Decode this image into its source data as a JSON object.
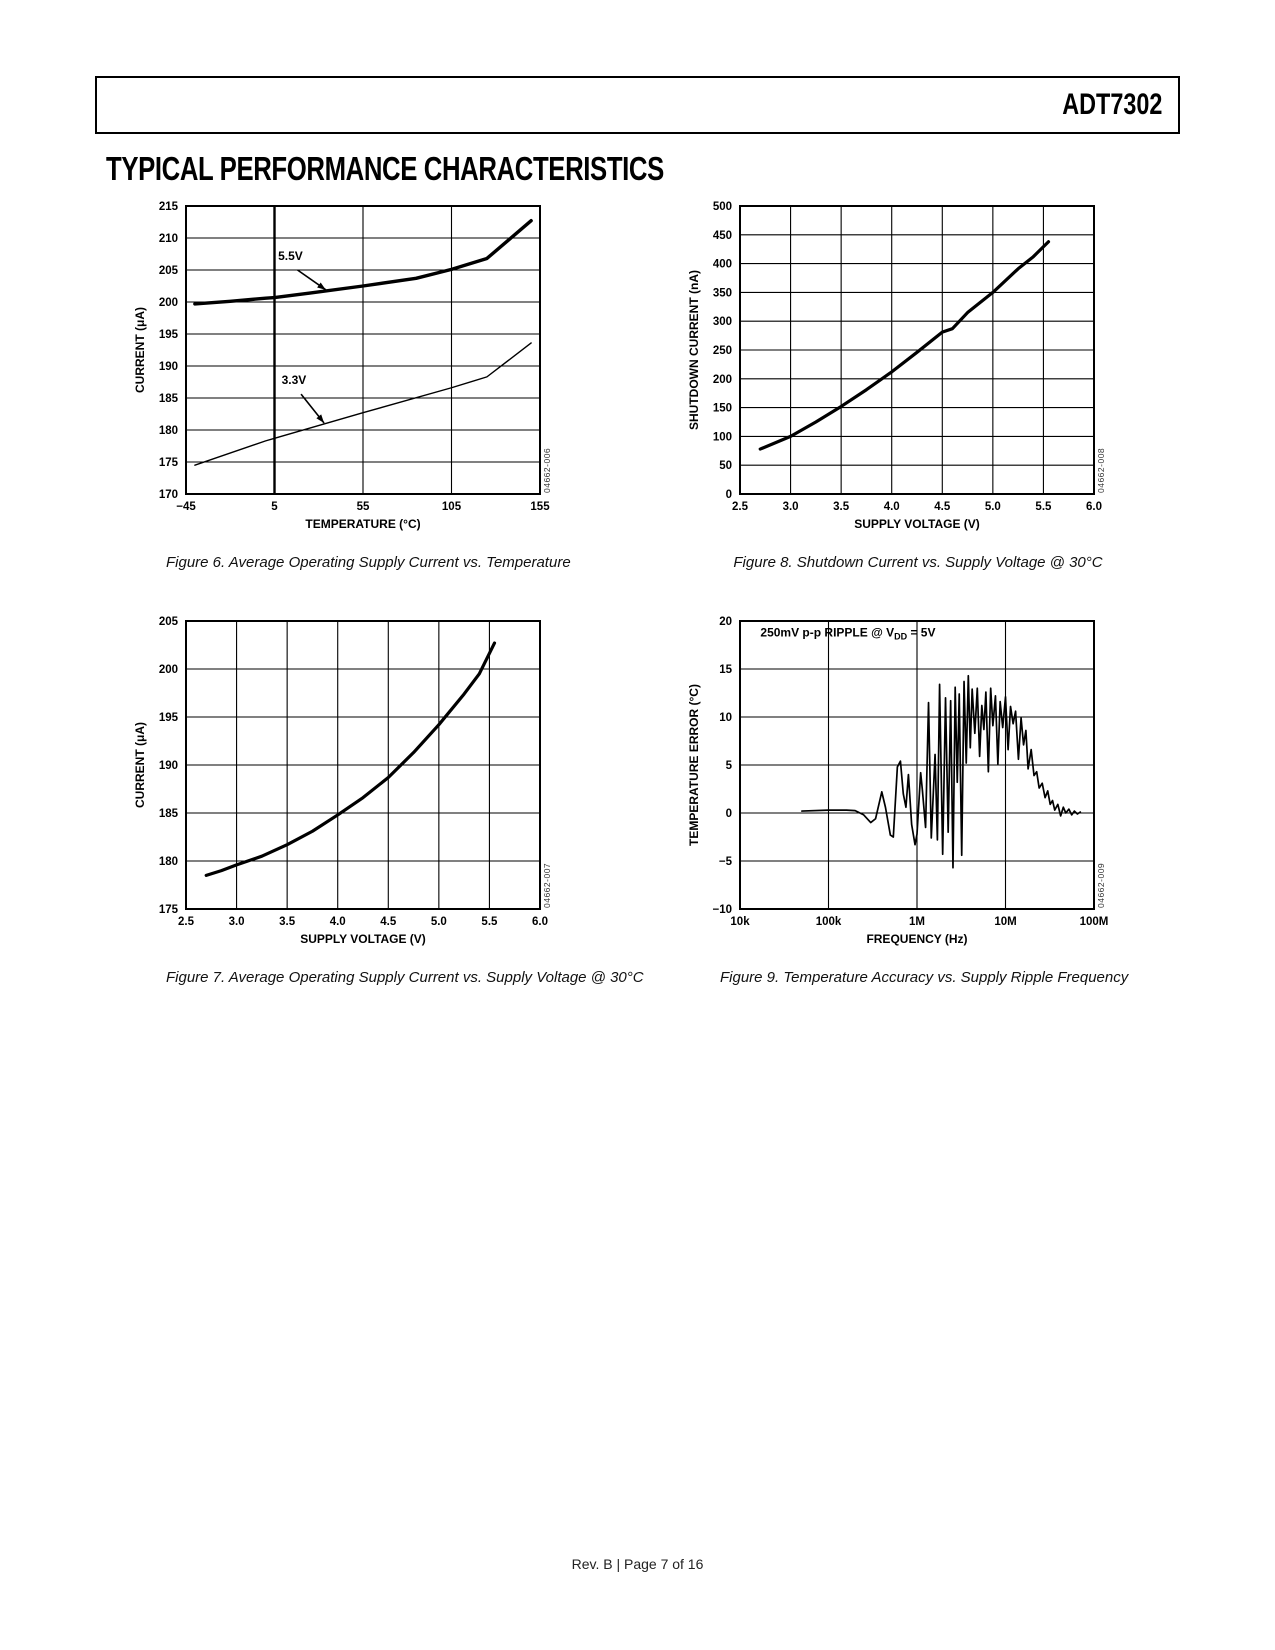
{
  "header": {
    "part_number": "ADT7302",
    "section_title": "TYPICAL PERFORMANCE CHARACTERISTICS"
  },
  "footer": {
    "text": "Rev. B | Page 7 of 16"
  },
  "colors": {
    "ink": "#000000",
    "watermark": "#333333"
  },
  "chart_data": [
    {
      "name": "fig6",
      "type": "line",
      "caption": "Figure 6. Average Operating Supply Current vs. Temperature",
      "watermark": "04662-006",
      "xlabel": "TEMPERATURE (°C)",
      "ylabel": "CURRENT (μA)",
      "xlim": [
        -45,
        155
      ],
      "ylim": [
        170,
        215
      ],
      "xticks": [
        -45,
        5,
        55,
        105,
        155
      ],
      "xtick_labels": [
        "−45",
        "5",
        "55",
        "105",
        "155"
      ],
      "xtick_emphasis": [
        5
      ],
      "yticks": [
        170,
        175,
        180,
        185,
        190,
        195,
        200,
        205,
        210,
        215
      ],
      "ytick_labels": [
        "170",
        "175",
        "180",
        "185",
        "190",
        "195",
        "200",
        "205",
        "210",
        "215"
      ],
      "grid": true,
      "series": [
        {
          "name": "5.5V",
          "width": 3.4,
          "points": [
            [
              -40,
              199.7
            ],
            [
              -20,
              200.1
            ],
            [
              0,
              200.6
            ],
            [
              5,
              200.7
            ],
            [
              25,
              201.4
            ],
            [
              55,
              202.5
            ],
            [
              85,
              203.7
            ],
            [
              105,
              205.1
            ],
            [
              125,
              206.8
            ],
            [
              150,
              212.7
            ]
          ]
        },
        {
          "name": "3.3V",
          "width": 1.4,
          "points": [
            [
              -40,
              174.5
            ],
            [
              0,
              178.3
            ],
            [
              5,
              178.7
            ],
            [
              55,
              182.7
            ],
            [
              105,
              186.6
            ],
            [
              125,
              188.3
            ],
            [
              150,
              193.6
            ]
          ]
        }
      ],
      "annotations": [
        {
          "text": "5.5V",
          "text_at": [
            14,
            206.6
          ],
          "arrow": [
            [
              18,
              205.0
            ],
            [
              34,
              201.9
            ]
          ]
        },
        {
          "text": "3.3V",
          "text_at": [
            16,
            187.2
          ],
          "arrow": [
            [
              20,
              185.6
            ],
            [
              33,
              181.1
            ]
          ]
        }
      ]
    },
    {
      "name": "fig8",
      "type": "line",
      "caption": "Figure 8. Shutdown Current vs. Supply Voltage @ 30°C",
      "watermark": "04662-008",
      "xlabel": "SUPPLY VOLTAGE (V)",
      "ylabel": "SHUTDOWN CURRENT (nA)",
      "xlim": [
        2.5,
        6.0
      ],
      "ylim": [
        0,
        500
      ],
      "xticks": [
        2.5,
        3.0,
        3.5,
        4.0,
        4.5,
        5.0,
        5.5,
        6.0
      ],
      "xtick_labels": [
        "2.5",
        "3.0",
        "3.5",
        "4.0",
        "4.5",
        "5.0",
        "5.5",
        "6.0"
      ],
      "yticks": [
        0,
        50,
        100,
        150,
        200,
        250,
        300,
        350,
        400,
        450,
        500
      ],
      "ytick_labels": [
        "0",
        "50",
        "100",
        "150",
        "200",
        "250",
        "300",
        "350",
        "400",
        "450",
        "500"
      ],
      "grid": true,
      "series": [
        {
          "name": "shutdown-current",
          "width": 3.2,
          "points": [
            [
              2.7,
              78
            ],
            [
              3.0,
              100
            ],
            [
              3.25,
              125
            ],
            [
              3.5,
              152
            ],
            [
              3.75,
              181
            ],
            [
              4.0,
              212
            ],
            [
              4.25,
              246
            ],
            [
              4.5,
              281
            ],
            [
              4.6,
              287
            ],
            [
              4.75,
              315
            ],
            [
              5.0,
              350
            ],
            [
              5.25,
              391
            ],
            [
              5.4,
              412
            ],
            [
              5.55,
              438
            ]
          ]
        }
      ],
      "annotations": []
    },
    {
      "name": "fig7",
      "type": "line",
      "caption": "Figure 7. Average Operating Supply Current vs. Supply Voltage @ 30°C",
      "watermark": "04662-007",
      "xlabel": "SUPPLY VOLTAGE (V)",
      "ylabel": "CURRENT (μA)",
      "xlim": [
        2.5,
        6.0
      ],
      "ylim": [
        175,
        205
      ],
      "xticks": [
        2.5,
        3.0,
        3.5,
        4.0,
        4.5,
        5.0,
        5.5,
        6.0
      ],
      "xtick_labels": [
        "2.5",
        "3.0",
        "3.5",
        "4.0",
        "4.5",
        "5.0",
        "5.5",
        "6.0"
      ],
      "yticks": [
        175,
        180,
        185,
        190,
        195,
        200,
        205
      ],
      "ytick_labels": [
        "175",
        "180",
        "185",
        "190",
        "195",
        "200",
        "205"
      ],
      "grid": true,
      "series": [
        {
          "name": "supply-current",
          "width": 3.2,
          "points": [
            [
              2.7,
              178.5
            ],
            [
              2.85,
              179.0
            ],
            [
              3.0,
              179.6
            ],
            [
              3.25,
              180.5
            ],
            [
              3.5,
              181.7
            ],
            [
              3.75,
              183.1
            ],
            [
              4.0,
              184.8
            ],
            [
              4.25,
              186.6
            ],
            [
              4.5,
              188.7
            ],
            [
              4.75,
              191.3
            ],
            [
              5.0,
              194.2
            ],
            [
              5.25,
              197.4
            ],
            [
              5.4,
              199.5
            ],
            [
              5.55,
              202.7
            ]
          ]
        }
      ],
      "annotations": []
    },
    {
      "name": "fig9",
      "type": "line",
      "caption": "Figure 9. Temperature Accuracy vs. Supply Ripple Frequency",
      "watermark": "04662-009",
      "xlabel": "FREQUENCY (Hz)",
      "ylabel": "TEMPERATURE ERROR (°C)",
      "xscale": "log",
      "xlim": [
        10000,
        100000000
      ],
      "ylim": [
        -10,
        20
      ],
      "xticks": [
        10000,
        100000,
        1000000,
        10000000,
        100000000
      ],
      "xtick_labels": [
        "10k",
        "100k",
        "1M",
        "10M",
        "100M"
      ],
      "yticks": [
        -10,
        -5,
        0,
        5,
        10,
        15,
        20
      ],
      "ytick_labels": [
        "−10",
        "−5",
        "0",
        "5",
        "10",
        "15",
        "20"
      ],
      "grid": true,
      "note": {
        "pre": "250mV p-p RIPPLE @ V",
        "sub": "DD",
        "post": " = 5V",
        "at": [
          17000,
          18.4
        ]
      },
      "series": [
        {
          "name": "temperature-error",
          "width": 1.7,
          "points": [
            [
              50000,
              0.2
            ],
            [
              100000,
              0.3
            ],
            [
              160000,
              0.3
            ],
            [
              200000,
              0.25
            ],
            [
              250000,
              -0.2
            ],
            [
              300000,
              -1.0
            ],
            [
              340000,
              -0.6
            ],
            [
              400000,
              2.2
            ],
            [
              440000,
              0.6
            ],
            [
              500000,
              -2.3
            ],
            [
              540000,
              -2.5
            ],
            [
              600000,
              4.8
            ],
            [
              650000,
              5.4
            ],
            [
              700000,
              2.0
            ],
            [
              750000,
              0.6
            ],
            [
              800000,
              4.0
            ],
            [
              870000,
              -1.2
            ],
            [
              950000,
              -3.3
            ],
            [
              1000000,
              -2.2
            ],
            [
              1100000,
              4.2
            ],
            [
              1150000,
              2.4
            ],
            [
              1250000,
              -1.5
            ],
            [
              1350000,
              11.5
            ],
            [
              1450000,
              -2.6
            ],
            [
              1600000,
              6.1
            ],
            [
              1700000,
              -2.8
            ],
            [
              1800000,
              13.4
            ],
            [
              1950000,
              -4.3
            ],
            [
              2100000,
              12.0
            ],
            [
              2250000,
              -2.0
            ],
            [
              2400000,
              11.7
            ],
            [
              2550000,
              -5.7
            ],
            [
              2700000,
              13.1
            ],
            [
              2850000,
              3.2
            ],
            [
              3000000,
              12.4
            ],
            [
              3200000,
              -4.4
            ],
            [
              3400000,
              13.7
            ],
            [
              3600000,
              5.2
            ],
            [
              3800000,
              14.3
            ],
            [
              4000000,
              6.8
            ],
            [
              4200000,
              12.9
            ],
            [
              4500000,
              8.3
            ],
            [
              4800000,
              13.0
            ],
            [
              5100000,
              5.9
            ],
            [
              5400000,
              11.2
            ],
            [
              5700000,
              8.7
            ],
            [
              6000000,
              12.6
            ],
            [
              6400000,
              4.3
            ],
            [
              6800000,
              13.0
            ],
            [
              7200000,
              9.1
            ],
            [
              7700000,
              12.2
            ],
            [
              8200000,
              5.1
            ],
            [
              8700000,
              11.6
            ],
            [
              9300000,
              8.9
            ],
            [
              10000000,
              12.1
            ],
            [
              10700000,
              6.6
            ],
            [
              11400000,
              11.1
            ],
            [
              12200000,
              9.3
            ],
            [
              13000000,
              10.6
            ],
            [
              14000000,
              5.6
            ],
            [
              15000000,
              9.9
            ],
            [
              16000000,
              7.1
            ],
            [
              17000000,
              8.6
            ],
            [
              18000000,
              4.6
            ],
            [
              19500000,
              6.6
            ],
            [
              21000000,
              3.9
            ],
            [
              22500000,
              4.3
            ],
            [
              24000000,
              2.6
            ],
            [
              26000000,
              3.1
            ],
            [
              28000000,
              1.6
            ],
            [
              30000000,
              2.3
            ],
            [
              32000000,
              0.9
            ],
            [
              34000000,
              1.3
            ],
            [
              36000000,
              0.3
            ],
            [
              39000000,
              0.9
            ],
            [
              42000000,
              -0.3
            ],
            [
              45000000,
              0.6
            ],
            [
              48000000,
              0.0
            ],
            [
              52000000,
              0.4
            ],
            [
              56000000,
              -0.2
            ],
            [
              60000000,
              0.2
            ],
            [
              65000000,
              -0.1
            ],
            [
              70000000,
              0.1
            ]
          ]
        }
      ],
      "annotations": []
    }
  ]
}
